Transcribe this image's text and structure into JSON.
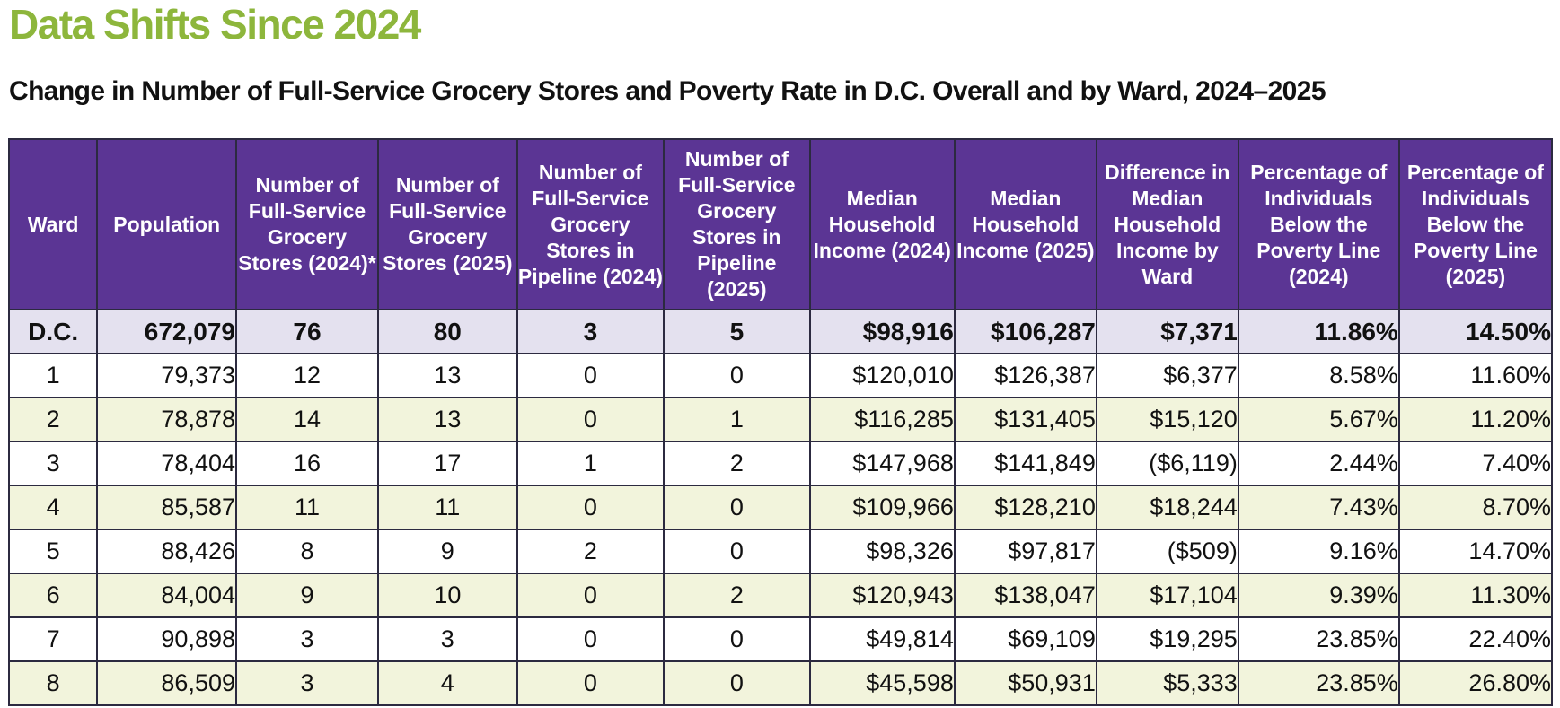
{
  "title": "Data Shifts Since 2024",
  "subtitle": "Change in Number of Full-Service Grocery Stores and Poverty Rate in D.C. Overall and by Ward, 2024–2025",
  "colors": {
    "title": "#8db63c",
    "header_bg": "#5b3594",
    "total_bg": "#e4e1ef",
    "stripe_bg": "#f2f4dc"
  },
  "table": {
    "headers": [
      "Ward",
      "Population",
      "Number of Full-Service Grocery Stores (2024)*",
      "Number of Full-Service Grocery Stores (2025)",
      "Number of Full-Service Grocery Stores in Pipeline (2024)",
      "Number of Full-Service Grocery Stores in Pipeline (2025)",
      "Median Household Income (2024)",
      "Median Household Income (2025)",
      "Difference in Median Household Income by Ward",
      "Percentage of Individuals Below the Poverty Line (2024)",
      "Percentage of Individuals Below the Poverty Line (2025)"
    ],
    "rows": [
      [
        "D.C.",
        "672,079",
        "76",
        "80",
        "3",
        "5",
        "$98,916",
        "$106,287",
        "$7,371",
        "11.86%",
        "14.50%"
      ],
      [
        "1",
        "79,373",
        "12",
        "13",
        "0",
        "0",
        "$120,010",
        "$126,387",
        "$6,377",
        "8.58%",
        "11.60%"
      ],
      [
        "2",
        "78,878",
        "14",
        "13",
        "0",
        "1",
        "$116,285",
        "$131,405",
        "$15,120",
        "5.67%",
        "11.20%"
      ],
      [
        "3",
        "78,404",
        "16",
        "17",
        "1",
        "2",
        "$147,968",
        "$141,849",
        "($6,119)",
        "2.44%",
        "7.40%"
      ],
      [
        "4",
        "85,587",
        "11",
        "11",
        "0",
        "0",
        "$109,966",
        "$128,210",
        "$18,244",
        "7.43%",
        "8.70%"
      ],
      [
        "5",
        "88,426",
        "8",
        "9",
        "2",
        "0",
        "$98,326",
        "$97,817",
        "($509)",
        "9.16%",
        "14.70%"
      ],
      [
        "6",
        "84,004",
        "9",
        "10",
        "0",
        "2",
        "$120,943",
        "$138,047",
        "$17,104",
        "9.39%",
        "11.30%"
      ],
      [
        "7",
        "90,898",
        "3",
        "3",
        "0",
        "0",
        "$49,814",
        "$69,109",
        "$19,295",
        "23.85%",
        "22.40%"
      ],
      [
        "8",
        "86,509",
        "3",
        "4",
        "0",
        "0",
        "$45,598",
        "$50,931",
        "$5,333",
        "23.85%",
        "26.80%"
      ]
    ]
  }
}
